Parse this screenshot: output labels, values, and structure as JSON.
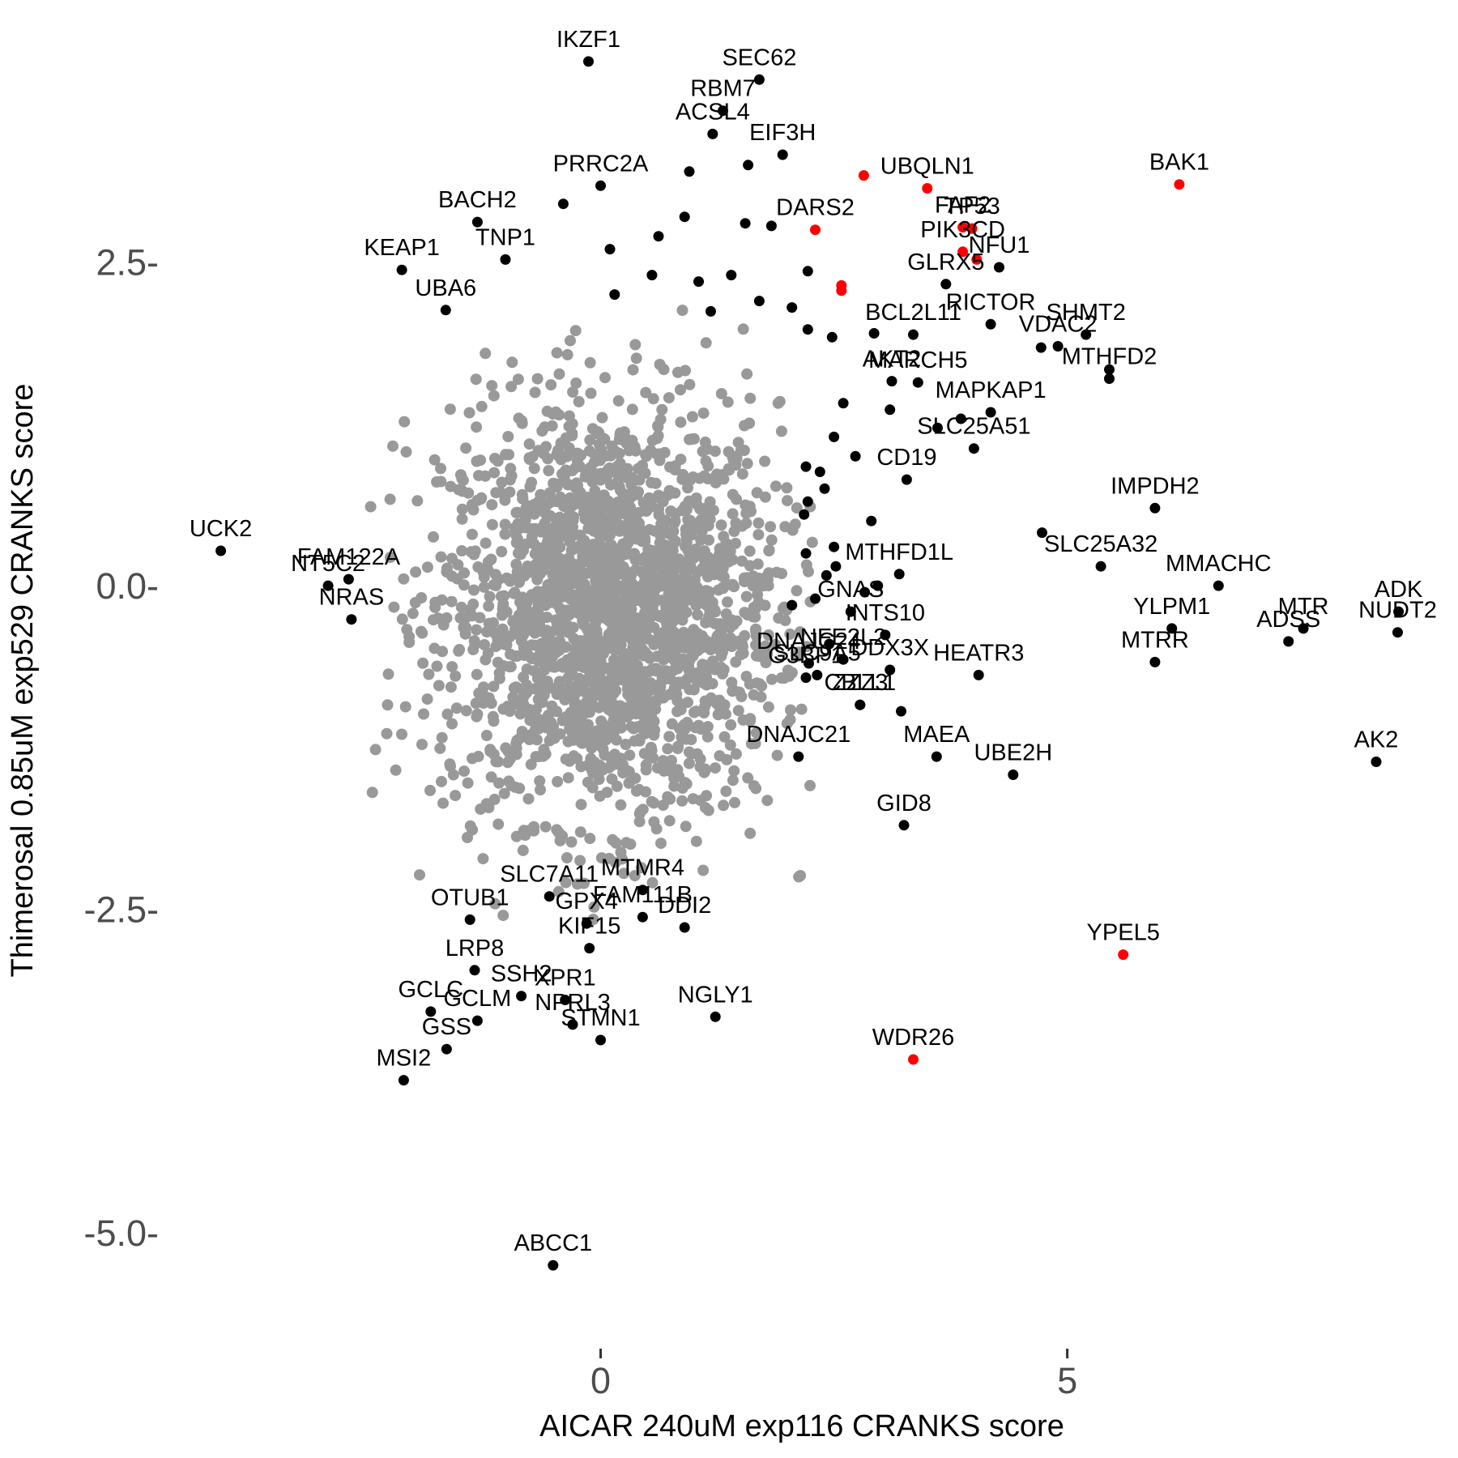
{
  "chart_data": {
    "type": "scatter",
    "xlabel": "AICAR 240uM exp116 CRANKS score",
    "ylabel": "Thimerosal 0.85uM exp529 CRANKS score",
    "xlim": [
      -4.7,
      9.1
    ],
    "ylim": [
      -5.8,
      4.4
    ],
    "x_ticks": [
      0,
      5
    ],
    "x_tick_labels": [
      "0",
      "5"
    ],
    "y_ticks": [
      2.5,
      0,
      -2.5,
      -5
    ],
    "y_tick_labels": [
      "2.5-",
      "0.0-",
      "-2.5-",
      "-5.0-"
    ],
    "grid": false,
    "legend": "none",
    "colors": {
      "background_genes": "#999999",
      "hit_genes": "#000000",
      "highlighted_genes": "#ff0000"
    },
    "background_cloud": {
      "x_center": 0.1,
      "y_center": -0.2,
      "x_sd": 0.9,
      "y_sd": 0.8,
      "n_points": 2200,
      "color": "#999999"
    },
    "genes": [
      {
        "name": "IKZF1",
        "x": -0.13,
        "y": 4.05,
        "color": "#000000"
      },
      {
        "name": "SEC62",
        "x": 1.7,
        "y": 3.91,
        "color": "#000000"
      },
      {
        "name": "RBM7",
        "x": 1.31,
        "y": 3.67,
        "color": "#000000"
      },
      {
        "name": "ACSL4",
        "x": 1.2,
        "y": 3.49,
        "color": "#000000"
      },
      {
        "name": "EIF3H",
        "x": 1.95,
        "y": 3.33,
        "color": "#000000"
      },
      {
        "name": "PRRC2A",
        "x": 0.0,
        "y": 3.09,
        "color": "#000000"
      },
      {
        "name": "UBQLN1",
        "x": 3.5,
        "y": 3.07,
        "color": "#ff0000"
      },
      {
        "name": "BAK1",
        "x": 6.2,
        "y": 3.1,
        "color": "#ff0000"
      },
      {
        "name": "",
        "x": 2.82,
        "y": 3.17,
        "color": "#ff0000"
      },
      {
        "name": "BACH2",
        "x": -1.32,
        "y": 2.81,
        "color": "#000000"
      },
      {
        "name": "DARS2",
        "x": 2.3,
        "y": 2.75,
        "color": "#ff0000"
      },
      {
        "name": "FAF2",
        "x": 3.88,
        "y": 2.77,
        "color": "#ff0000"
      },
      {
        "name": "TP53",
        "x": 3.98,
        "y": 2.76,
        "color": "#ff0000"
      },
      {
        "name": "PIK3CD",
        "x": 3.88,
        "y": 2.58,
        "color": "#ff0000"
      },
      {
        "name": "",
        "x": 4.03,
        "y": 2.52,
        "color": "#ff0000"
      },
      {
        "name": "NFU1",
        "x": 4.27,
        "y": 2.46,
        "color": "#000000"
      },
      {
        "name": "KEAP1",
        "x": -2.13,
        "y": 2.44,
        "color": "#000000"
      },
      {
        "name": "TNP1",
        "x": -1.02,
        "y": 2.52,
        "color": "#000000"
      },
      {
        "name": "",
        "x": 2.58,
        "y": 2.32,
        "color": "#ff0000"
      },
      {
        "name": "",
        "x": 2.58,
        "y": 2.28,
        "color": "#ff0000"
      },
      {
        "name": "GLRX5",
        "x": 3.7,
        "y": 2.33,
        "color": "#000000"
      },
      {
        "name": "UBA6",
        "x": -1.66,
        "y": 2.13,
        "color": "#000000"
      },
      {
        "name": "SHMT2",
        "x": 5.2,
        "y": 1.94,
        "color": "#000000"
      },
      {
        "name": "RICTOR",
        "x": 4.18,
        "y": 2.02,
        "color": "#000000"
      },
      {
        "name": "BCL2L11",
        "x": 3.35,
        "y": 1.94,
        "color": "#000000"
      },
      {
        "name": "VDAC2",
        "x": 4.9,
        "y": 1.85,
        "color": "#000000"
      },
      {
        "name": "",
        "x": 4.72,
        "y": 1.84,
        "color": "#000000"
      },
      {
        "name": "",
        "x": 5.45,
        "y": 1.67,
        "color": "#000000"
      },
      {
        "name": "MTHFD2",
        "x": 5.45,
        "y": 1.6,
        "color": "#000000"
      },
      {
        "name": "MARCH5",
        "x": 3.4,
        "y": 1.57,
        "color": "#000000"
      },
      {
        "name": "AKT2",
        "x": 3.12,
        "y": 1.58,
        "color": "#000000"
      },
      {
        "name": "MAPKAP1",
        "x": 4.18,
        "y": 1.34,
        "color": "#000000"
      },
      {
        "name": "",
        "x": 3.86,
        "y": 1.29,
        "color": "#000000"
      },
      {
        "name": "",
        "x": 3.1,
        "y": 1.36,
        "color": "#000000"
      },
      {
        "name": "",
        "x": 3.61,
        "y": 1.22,
        "color": "#000000"
      },
      {
        "name": "SLC25A51",
        "x": 4.0,
        "y": 1.06,
        "color": "#000000"
      },
      {
        "name": "CD19",
        "x": 3.28,
        "y": 0.82,
        "color": "#000000"
      },
      {
        "name": "IMPDH2",
        "x": 5.94,
        "y": 0.6,
        "color": "#000000"
      },
      {
        "name": "",
        "x": 4.73,
        "y": 0.41,
        "color": "#000000"
      },
      {
        "name": "MTHFD1L",
        "x": 3.2,
        "y": 0.09,
        "color": "#000000"
      },
      {
        "name": "SLC25A32",
        "x": 5.36,
        "y": 0.15,
        "color": "#000000"
      },
      {
        "name": "MMACHC",
        "x": 6.62,
        "y": 0.0,
        "color": "#000000"
      },
      {
        "name": "ADK",
        "x": 8.55,
        "y": -0.2,
        "color": "#000000"
      },
      {
        "name": "MTR",
        "x": 7.53,
        "y": -0.33,
        "color": "#000000"
      },
      {
        "name": "NUDT2",
        "x": 8.54,
        "y": -0.36,
        "color": "#000000"
      },
      {
        "name": "ADSS",
        "x": 7.37,
        "y": -0.43,
        "color": "#000000"
      },
      {
        "name": "YLPM1",
        "x": 6.12,
        "y": -0.33,
        "color": "#000000"
      },
      {
        "name": "INTS10",
        "x": 3.05,
        "y": -0.38,
        "color": "#000000"
      },
      {
        "name": "GNAS",
        "x": 2.68,
        "y": -0.2,
        "color": "#000000"
      },
      {
        "name": "HEATR3",
        "x": 4.05,
        "y": -0.69,
        "color": "#000000"
      },
      {
        "name": "MTRR",
        "x": 5.94,
        "y": -0.59,
        "color": "#000000"
      },
      {
        "name": "DNAJC24",
        "x": 2.23,
        "y": -0.6,
        "color": "#000000"
      },
      {
        "name": "SLC9A5",
        "x": 2.32,
        "y": -0.69,
        "color": "#000000"
      },
      {
        "name": "G3BP1",
        "x": 2.2,
        "y": -0.71,
        "color": "#000000"
      },
      {
        "name": "NFE2L2",
        "x": 2.6,
        "y": -0.57,
        "color": "#000000"
      },
      {
        "name": "DDX3X",
        "x": 3.1,
        "y": -0.65,
        "color": "#000000"
      },
      {
        "name": "",
        "x": 3.22,
        "y": -0.97,
        "color": "#000000"
      },
      {
        "name": "CBLL1",
        "x": 2.78,
        "y": -0.92,
        "color": "#000000"
      },
      {
        "name": "ZZZ3",
        "x": 2.78,
        "y": -0.92,
        "color": "#000000"
      },
      {
        "name": "AK2",
        "x": 8.31,
        "y": -1.36,
        "color": "#000000"
      },
      {
        "name": "DNAJC21",
        "x": 2.12,
        "y": -1.32,
        "color": "#000000"
      },
      {
        "name": "MAEA",
        "x": 3.6,
        "y": -1.32,
        "color": "#000000"
      },
      {
        "name": "UBE2H",
        "x": 4.42,
        "y": -1.46,
        "color": "#000000"
      },
      {
        "name": "GID8",
        "x": 3.25,
        "y": -1.85,
        "color": "#000000"
      },
      {
        "name": "OTUB1",
        "x": -1.4,
        "y": -2.58,
        "color": "#000000"
      },
      {
        "name": "SLC7A11",
        "x": -0.55,
        "y": -2.4,
        "color": "#000000"
      },
      {
        "name": "GPX4",
        "x": -0.15,
        "y": -2.61,
        "color": "#000000"
      },
      {
        "name": "MTMR4",
        "x": 0.45,
        "y": -2.35,
        "color": "#000000"
      },
      {
        "name": "FAM111B",
        "x": 0.45,
        "y": -2.56,
        "color": "#000000"
      },
      {
        "name": "DDI2",
        "x": 0.9,
        "y": -2.64,
        "color": "#000000"
      },
      {
        "name": "KIF15",
        "x": -0.12,
        "y": -2.8,
        "color": "#000000"
      },
      {
        "name": "LRP8",
        "x": -1.35,
        "y": -2.97,
        "color": "#000000"
      },
      {
        "name": "XPR1",
        "x": -0.38,
        "y": -3.2,
        "color": "#000000"
      },
      {
        "name": "SSH2",
        "x": -0.85,
        "y": -3.17,
        "color": "#000000"
      },
      {
        "name": "GCLC",
        "x": -1.82,
        "y": -3.29,
        "color": "#000000"
      },
      {
        "name": "GCLM",
        "x": -1.32,
        "y": -3.36,
        "color": "#000000"
      },
      {
        "name": "NPRL3",
        "x": -0.3,
        "y": -3.39,
        "color": "#000000"
      },
      {
        "name": "STMN1",
        "x": 0.0,
        "y": -3.51,
        "color": "#000000"
      },
      {
        "name": "NGLY1",
        "x": 1.23,
        "y": -3.33,
        "color": "#000000"
      },
      {
        "name": "GSS",
        "x": -1.65,
        "y": -3.58,
        "color": "#000000"
      },
      {
        "name": "MSI2",
        "x": -2.11,
        "y": -3.82,
        "color": "#000000"
      },
      {
        "name": "YPEL5",
        "x": 5.6,
        "y": -2.85,
        "color": "#ff0000"
      },
      {
        "name": "WDR26",
        "x": 3.35,
        "y": -3.66,
        "color": "#ff0000"
      },
      {
        "name": "ABCC1",
        "x": -0.51,
        "y": -5.25,
        "color": "#000000"
      },
      {
        "name": "UCK2",
        "x": -4.07,
        "y": 0.27,
        "color": "#000000"
      },
      {
        "name": "FAM122A",
        "x": -2.7,
        "y": 0.05,
        "color": "#000000"
      },
      {
        "name": "NT5C2",
        "x": -2.92,
        "y": 0.0,
        "color": "#000000"
      },
      {
        "name": "NRAS",
        "x": -2.67,
        "y": -0.26,
        "color": "#000000"
      },
      {
        "name": "",
        "x": 1.83,
        "y": 2.78,
        "color": "#000000"
      },
      {
        "name": "",
        "x": 1.55,
        "y": 2.8,
        "color": "#000000"
      },
      {
        "name": "",
        "x": 0.9,
        "y": 2.85,
        "color": "#000000"
      },
      {
        "name": "",
        "x": 0.62,
        "y": 2.7,
        "color": "#000000"
      },
      {
        "name": "",
        "x": 0.1,
        "y": 2.6,
        "color": "#000000"
      },
      {
        "name": "",
        "x": -0.4,
        "y": 2.95,
        "color": "#000000"
      },
      {
        "name": "",
        "x": 0.95,
        "y": 3.2,
        "color": "#000000"
      },
      {
        "name": "",
        "x": 1.58,
        "y": 3.25,
        "color": "#000000"
      },
      {
        "name": "",
        "x": 2.22,
        "y": 2.43,
        "color": "#000000"
      },
      {
        "name": "",
        "x": 1.4,
        "y": 2.4,
        "color": "#000000"
      },
      {
        "name": "",
        "x": 1.05,
        "y": 2.35,
        "color": "#000000"
      },
      {
        "name": "",
        "x": 0.55,
        "y": 2.4,
        "color": "#000000"
      },
      {
        "name": "",
        "x": 0.15,
        "y": 2.25,
        "color": "#000000"
      },
      {
        "name": "",
        "x": 1.7,
        "y": 2.2,
        "color": "#000000"
      },
      {
        "name": "",
        "x": 1.18,
        "y": 2.12,
        "color": "#000000"
      },
      {
        "name": "",
        "x": 2.05,
        "y": 2.15,
        "color": "#000000"
      },
      {
        "name": "",
        "x": 2.48,
        "y": 1.92,
        "color": "#000000"
      },
      {
        "name": "",
        "x": 2.22,
        "y": 1.98,
        "color": "#000000"
      },
      {
        "name": "",
        "x": 2.93,
        "y": 1.95,
        "color": "#000000"
      },
      {
        "name": "",
        "x": 2.6,
        "y": 1.41,
        "color": "#000000"
      },
      {
        "name": "",
        "x": 2.5,
        "y": 1.15,
        "color": "#000000"
      },
      {
        "name": "",
        "x": 2.73,
        "y": 1.0,
        "color": "#000000"
      },
      {
        "name": "",
        "x": 2.2,
        "y": 0.92,
        "color": "#000000"
      },
      {
        "name": "",
        "x": 2.4,
        "y": 0.75,
        "color": "#000000"
      },
      {
        "name": "",
        "x": 2.22,
        "y": 0.65,
        "color": "#000000"
      },
      {
        "name": "",
        "x": 2.9,
        "y": 0.5,
        "color": "#000000"
      },
      {
        "name": "",
        "x": 2.5,
        "y": 0.3,
        "color": "#000000"
      },
      {
        "name": "",
        "x": 2.2,
        "y": 0.25,
        "color": "#000000"
      },
      {
        "name": "",
        "x": 2.52,
        "y": 0.15,
        "color": "#000000"
      },
      {
        "name": "",
        "x": 2.42,
        "y": 0.08,
        "color": "#000000"
      },
      {
        "name": "",
        "x": 2.83,
        "y": -0.05,
        "color": "#000000"
      },
      {
        "name": "",
        "x": 2.97,
        "y": 0.0,
        "color": "#000000"
      },
      {
        "name": "",
        "x": 2.05,
        "y": -0.15,
        "color": "#000000"
      },
      {
        "name": "",
        "x": 2.3,
        "y": -0.1,
        "color": "#000000"
      },
      {
        "name": "",
        "x": 2.45,
        "y": -0.45,
        "color": "#000000"
      },
      {
        "name": "",
        "x": 2.18,
        "y": 0.55,
        "color": "#000000"
      },
      {
        "name": "",
        "x": 2.35,
        "y": 0.88,
        "color": "#000000"
      }
    ]
  }
}
